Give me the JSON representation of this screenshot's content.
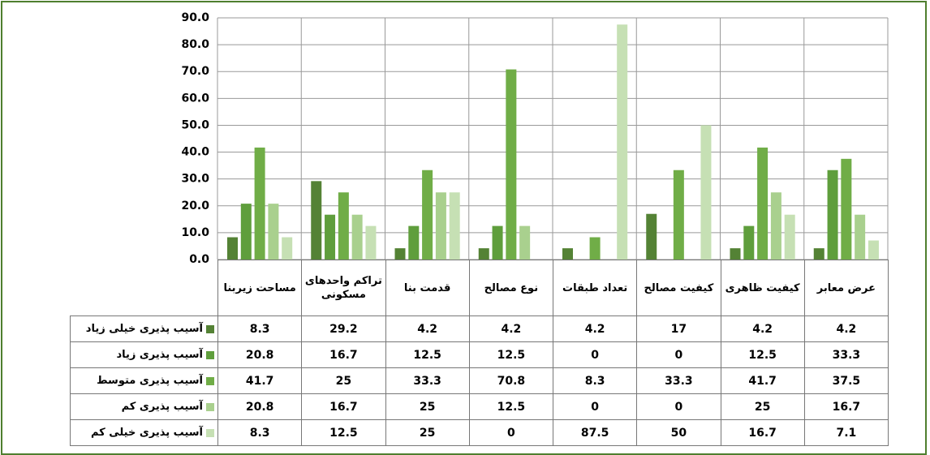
{
  "chart_data": {
    "type": "bar",
    "categories": [
      "مساحت زیربنا",
      "تراکم واحدهای مسکونی",
      "قدمت بنا",
      "نوع مصالح",
      "تعداد طبقات",
      "کیفیت مصالح",
      "کیفیت ظاهری",
      "عرض معابر"
    ],
    "series": [
      {
        "name": "آسیب پذیری خیلی زیاد",
        "color": "#548235",
        "values": [
          8.3,
          29.2,
          4.2,
          4.2,
          4.2,
          17,
          4.2,
          4.2
        ]
      },
      {
        "name": "آسیب پذیری زیاد",
        "color": "#5f9e3c",
        "values": [
          20.8,
          16.7,
          12.5,
          12.5,
          0,
          0,
          12.5,
          33.3
        ]
      },
      {
        "name": "آسیب پذیری متوسط",
        "color": "#70ad47",
        "values": [
          41.7,
          25,
          33.3,
          70.8,
          8.3,
          33.3,
          41.7,
          37.5
        ]
      },
      {
        "name": "آسیب پذیری کم",
        "color": "#a9d08e",
        "values": [
          20.8,
          16.7,
          25,
          12.5,
          0,
          0,
          25,
          16.7
        ]
      },
      {
        "name": "آسیب پذیری خیلی کم",
        "color": "#c6e0b4",
        "values": [
          8.3,
          12.5,
          25,
          0,
          87.5,
          50,
          16.7,
          7.1
        ]
      }
    ],
    "ylim": [
      0,
      90
    ],
    "yticks": [
      {
        "value": 0,
        "label": "0.0"
      },
      {
        "value": 10,
        "label": "10.0"
      },
      {
        "value": 20,
        "label": "20.0"
      },
      {
        "value": 30,
        "label": "30.0"
      },
      {
        "value": 40,
        "label": "40.0"
      },
      {
        "value": 50,
        "label": "50.0"
      },
      {
        "value": 60,
        "label": "60.0"
      },
      {
        "value": 70,
        "label": "70.0"
      },
      {
        "value": 80,
        "label": "80.0"
      },
      {
        "value": 90,
        "label": "90.0"
      }
    ],
    "grid": true
  }
}
